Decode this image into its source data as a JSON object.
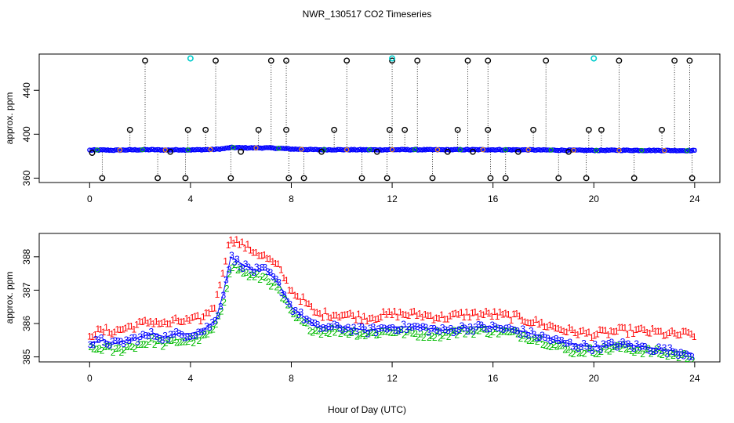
{
  "figure": {
    "title": "NWR_130517  CO2 Timeseries",
    "xlabel": "Hour of Day (UTC)"
  },
  "chart_data": [
    {
      "type": "scatter",
      "panel": "top",
      "ylabel": "approx. ppm",
      "xlim": [
        -2,
        25
      ],
      "ylim": [
        356,
        473
      ],
      "xticks": [
        0,
        4,
        8,
        12,
        16,
        20,
        24
      ],
      "yticks": [
        360,
        400,
        440
      ],
      "grid": false,
      "baseline": {
        "name": "CO2 (blue circles)",
        "color": "#0000ff",
        "x": [
          0,
          0.5,
          1,
          1.5,
          2,
          2.5,
          3,
          3.5,
          4,
          4.5,
          5,
          5.3,
          5.6,
          6,
          6.5,
          7,
          7.5,
          8,
          8.5,
          9,
          10,
          11,
          12,
          13,
          14,
          15,
          16,
          17,
          18,
          19,
          20,
          21,
          22,
          23,
          24
        ],
        "y": [
          385.5,
          385.6,
          385.4,
          385.7,
          385.8,
          385.9,
          385.6,
          385.8,
          385.7,
          385.9,
          386.2,
          386.8,
          387.9,
          387.7,
          387.5,
          387.6,
          387.2,
          386.5,
          386.2,
          385.9,
          385.9,
          385.8,
          385.9,
          385.9,
          385.8,
          385.9,
          385.9,
          385.8,
          385.6,
          385.4,
          385.3,
          385.4,
          385.3,
          385.2,
          385.1
        ]
      },
      "spikes": {
        "name": "outliers (black circles)",
        "color": "#000000",
        "x": [
          0.1,
          0.5,
          1.6,
          2.2,
          2.7,
          3.2,
          3.8,
          3.9,
          4.6,
          5.0,
          5.6,
          6.0,
          6.7,
          7.2,
          7.8,
          7.8,
          7.9,
          8.5,
          9.2,
          9.7,
          10.2,
          10.8,
          11.4,
          11.8,
          11.9,
          12.0,
          12.5,
          13.0,
          13.6,
          14.2,
          14.6,
          15.0,
          15.2,
          15.8,
          15.8,
          15.9,
          16.5,
          17.0,
          17.6,
          18.1,
          18.6,
          19.0,
          19.7,
          19.8,
          20.3,
          21.0,
          21.6,
          22.7,
          23.2,
          23.8,
          23.9
        ],
        "y": [
          383,
          360,
          404,
          467,
          360,
          384,
          360,
          404,
          404,
          467,
          360,
          384,
          404,
          467,
          467,
          404,
          360,
          360,
          384,
          404,
          467,
          360,
          384,
          360,
          404,
          467,
          404,
          467,
          360,
          384,
          404,
          467,
          384,
          467,
          404,
          360,
          360,
          384,
          404,
          467,
          360,
          384,
          360,
          404,
          404,
          467,
          360,
          404,
          467,
          467,
          360
        ]
      },
      "cyan_points": {
        "name": "flagged (cyan circles)",
        "color": "#00cccc",
        "x": [
          4.0,
          12.0,
          20.0
        ],
        "y": [
          469,
          469,
          469
        ]
      }
    },
    {
      "type": "scatter",
      "panel": "bottom",
      "ylabel": "approx. ppm",
      "xlim": [
        -2,
        25
      ],
      "ylim": [
        384.85,
        388.7
      ],
      "xticks": [
        0,
        4,
        8,
        12,
        16,
        20,
        24
      ],
      "yticks": [
        385,
        386,
        387,
        388
      ],
      "grid": false,
      "series": [
        {
          "name": "1",
          "marker": "1",
          "color": "#ff0000",
          "x": [
            0,
            0.5,
            1,
            1.5,
            2,
            2.5,
            3,
            3.5,
            4,
            4.5,
            5,
            5.3,
            5.6,
            6,
            6.5,
            7,
            7.5,
            8,
            8.5,
            9,
            10,
            11,
            12,
            13,
            14,
            15,
            16,
            17,
            18,
            19,
            20,
            21,
            22,
            23,
            24
          ],
          "y": [
            385.7,
            385.8,
            385.8,
            385.9,
            386.0,
            386.1,
            386.0,
            386.1,
            386.1,
            386.2,
            386.6,
            387.7,
            388.6,
            388.4,
            388.2,
            388.0,
            387.7,
            387.0,
            386.7,
            386.3,
            386.3,
            386.2,
            386.3,
            386.3,
            386.2,
            386.3,
            386.3,
            386.2,
            386.0,
            385.8,
            385.7,
            385.8,
            385.8,
            385.7,
            385.7
          ]
        },
        {
          "name": "2",
          "marker": "2",
          "color": "#00bb00",
          "x": [
            0,
            0.5,
            1,
            1.5,
            2,
            2.5,
            3,
            3.5,
            4,
            4.5,
            5,
            5.3,
            5.6,
            6,
            6.5,
            7,
            7.5,
            8,
            8.5,
            9,
            10,
            11,
            12,
            13,
            14,
            15,
            16,
            17,
            18,
            19,
            20,
            21,
            22,
            23,
            24
          ],
          "y": [
            385.2,
            385.3,
            385.2,
            385.3,
            385.4,
            385.5,
            385.4,
            385.5,
            385.5,
            385.6,
            385.9,
            386.6,
            387.8,
            387.6,
            387.4,
            387.4,
            387.0,
            386.3,
            386.0,
            385.8,
            385.8,
            385.7,
            385.8,
            385.7,
            385.7,
            385.8,
            385.8,
            385.7,
            385.5,
            385.2,
            385.2,
            385.3,
            385.2,
            385.1,
            385.0
          ]
        },
        {
          "name": "3",
          "marker": "3",
          "color": "#0000ff",
          "x": [
            0,
            0.5,
            1,
            1.5,
            2,
            2.5,
            3,
            3.5,
            4,
            4.5,
            5,
            5.3,
            5.6,
            6,
            6.5,
            7,
            7.5,
            8,
            8.5,
            9,
            10,
            11,
            12,
            13,
            14,
            15,
            16,
            17,
            18,
            19,
            20,
            21,
            22,
            23,
            24
          ],
          "y": [
            385.4,
            385.5,
            385.4,
            385.5,
            385.6,
            385.7,
            385.6,
            385.7,
            385.7,
            385.8,
            386.1,
            386.9,
            388.0,
            387.8,
            387.6,
            387.6,
            387.2,
            386.5,
            386.2,
            385.9,
            385.9,
            385.8,
            385.9,
            385.9,
            385.8,
            385.9,
            385.9,
            385.8,
            385.6,
            385.4,
            385.3,
            385.4,
            385.3,
            385.2,
            385.1
          ]
        }
      ]
    }
  ]
}
